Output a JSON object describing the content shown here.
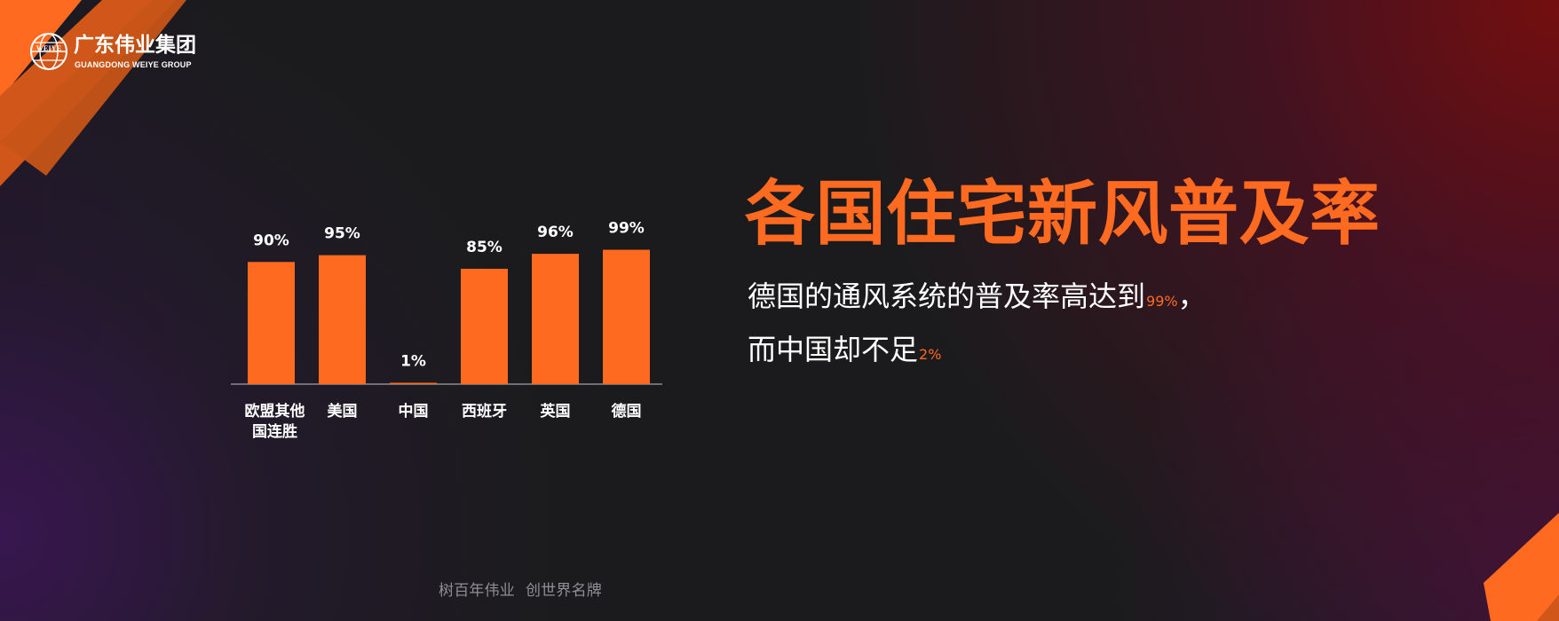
{
  "brand": {
    "logo_text": "WEIYE",
    "name": "广东伟业集团",
    "english_name": "GUANGDONG WEIYE GROUP"
  },
  "headline": "各国住宅新风普及率",
  "description": {
    "line1_prefix": "德国的通风系统的普及率高达到",
    "line1_value": "99%",
    "line1_suffix": "，",
    "line2_prefix": "而中国却不足",
    "line2_value": "2%"
  },
  "footer": {
    "left": "树百年伟业",
    "right": "创世界名牌"
  },
  "colors": {
    "accent": "#ff6a21",
    "axis": "#8b8b90",
    "text": "#ffffff"
  },
  "chart_data": {
    "type": "bar",
    "categories": [
      [
        "欧盟其他",
        "国连胜"
      ],
      [
        "美国"
      ],
      [
        "中国"
      ],
      [
        "西班牙"
      ],
      [
        "英国"
      ],
      [
        "德国"
      ]
    ],
    "values": [
      90,
      95,
      1,
      85,
      96,
      99
    ],
    "data_labels": [
      "90%",
      "95%",
      "1%",
      "85%",
      "96%",
      "99%"
    ],
    "title": "",
    "xlabel": "",
    "ylabel": "",
    "ylim": [
      0,
      100
    ],
    "grid": false,
    "legend": "none"
  }
}
